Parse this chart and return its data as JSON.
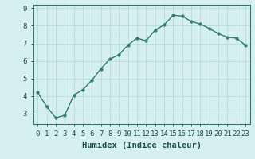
{
  "x": [
    0,
    1,
    2,
    3,
    4,
    5,
    6,
    7,
    8,
    9,
    10,
    11,
    12,
    13,
    14,
    15,
    16,
    17,
    18,
    19,
    20,
    21,
    22,
    23
  ],
  "y": [
    4.2,
    3.4,
    2.75,
    2.9,
    4.05,
    4.35,
    4.9,
    5.55,
    6.1,
    6.35,
    6.9,
    7.3,
    7.15,
    7.75,
    8.05,
    8.6,
    8.55,
    8.25,
    8.1,
    7.85,
    7.55,
    7.35,
    7.3,
    6.9
  ],
  "line_color": "#2e7d6e",
  "marker_color": "#2e7d6e",
  "bg_color": "#d6eff0",
  "grid_color": "#b0d8d8",
  "xlabel": "Humidex (Indice chaleur)",
  "ylim": [
    2.4,
    9.2
  ],
  "xlim": [
    -0.5,
    23.5
  ],
  "yticks": [
    3,
    4,
    5,
    6,
    7,
    8,
    9
  ],
  "xticks": [
    0,
    1,
    2,
    3,
    4,
    5,
    6,
    7,
    8,
    9,
    10,
    11,
    12,
    13,
    14,
    15,
    16,
    17,
    18,
    19,
    20,
    21,
    22,
    23
  ],
  "xlabel_fontsize": 7.5,
  "tick_fontsize": 6.5,
  "linewidth": 1.0,
  "markersize": 2.5,
  "spine_color": "#2e7d6e",
  "text_color": "#1a5050"
}
